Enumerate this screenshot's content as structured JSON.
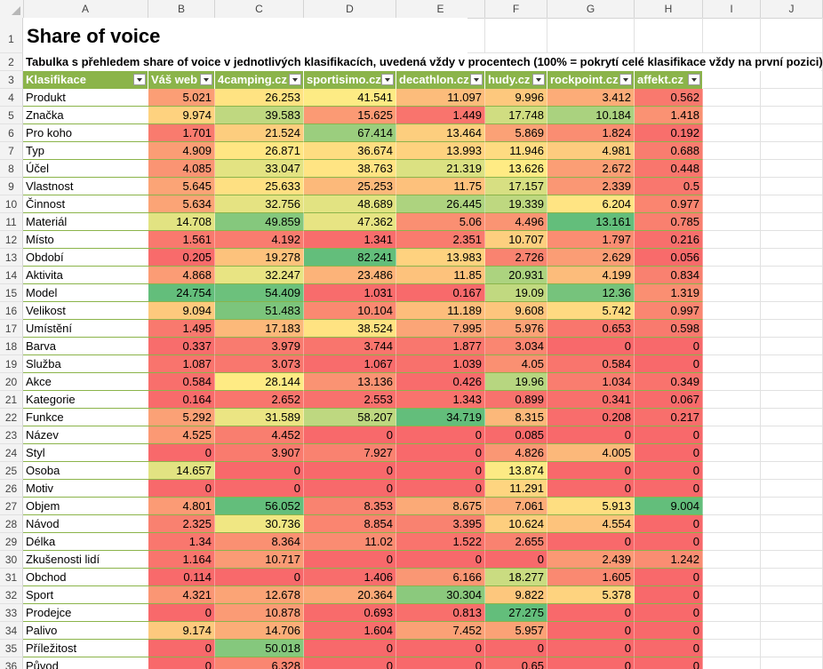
{
  "column_letters": [
    "A",
    "B",
    "C",
    "D",
    "E",
    "F",
    "G",
    "H",
    "I",
    "J"
  ],
  "title": "Share of voice",
  "subtitle": "Tabulka s přehledem share of voice v jednotlivých klasifikacích, uvedená vždy v procentech (100% = pokrytí celé klasifikace vždy na první pozici).",
  "headers": [
    "Klasifikace",
    "Váš web",
    "4camping.cz",
    "sportisimo.cz",
    "decathlon.cz",
    "hudy.cz",
    "rockpoint.cz",
    "affekt.cz"
  ],
  "rows": [
    {
      "n": "4",
      "label": "Produkt",
      "values": [
        "5.021",
        "26.253",
        "41.541",
        "11.097",
        "9.996",
        "3.412",
        "0.562"
      ]
    },
    {
      "n": "5",
      "label": "Značka",
      "values": [
        "9.974",
        "39.583",
        "15.625",
        "1.449",
        "17.748",
        "10.184",
        "1.418"
      ]
    },
    {
      "n": "6",
      "label": "Pro koho",
      "values": [
        "1.701",
        "21.524",
        "67.414",
        "13.464",
        "5.869",
        "1.824",
        "0.192"
      ]
    },
    {
      "n": "7",
      "label": "Typ",
      "values": [
        "4.909",
        "26.871",
        "36.674",
        "13.993",
        "11.946",
        "4.981",
        "0.688"
      ]
    },
    {
      "n": "8",
      "label": "Účel",
      "values": [
        "4.085",
        "33.047",
        "38.763",
        "21.319",
        "13.626",
        "2.672",
        "0.448"
      ]
    },
    {
      "n": "9",
      "label": "Vlastnost",
      "values": [
        "5.645",
        "25.633",
        "25.253",
        "11.75",
        "17.157",
        "2.339",
        "0.5"
      ]
    },
    {
      "n": "10",
      "label": "Činnost",
      "values": [
        "5.634",
        "32.756",
        "48.689",
        "26.445",
        "19.339",
        "6.204",
        "0.977"
      ]
    },
    {
      "n": "11",
      "label": "Materiál",
      "values": [
        "14.708",
        "49.859",
        "47.362",
        "5.06",
        "4.496",
        "13.161",
        "0.785"
      ]
    },
    {
      "n": "12",
      "label": "Místo",
      "values": [
        "1.561",
        "4.192",
        "1.341",
        "2.351",
        "10.707",
        "1.797",
        "0.216"
      ]
    },
    {
      "n": "13",
      "label": "Období",
      "values": [
        "0.205",
        "19.278",
        "82.241",
        "13.983",
        "2.726",
        "2.629",
        "0.056"
      ]
    },
    {
      "n": "14",
      "label": "Aktivita",
      "values": [
        "4.868",
        "32.247",
        "23.486",
        "11.85",
        "20.931",
        "4.199",
        "0.834"
      ]
    },
    {
      "n": "15",
      "label": "Model",
      "values": [
        "24.754",
        "54.409",
        "1.031",
        "0.167",
        "19.09",
        "12.36",
        "1.319"
      ]
    },
    {
      "n": "16",
      "label": "Velikost",
      "values": [
        "9.094",
        "51.483",
        "10.104",
        "11.189",
        "9.608",
        "5.742",
        "0.997"
      ]
    },
    {
      "n": "17",
      "label": "Umístění",
      "values": [
        "1.495",
        "17.183",
        "38.524",
        "7.995",
        "5.976",
        "0.653",
        "0.598"
      ]
    },
    {
      "n": "18",
      "label": "Barva",
      "values": [
        "0.337",
        "3.979",
        "3.744",
        "1.877",
        "3.034",
        "0",
        "0"
      ]
    },
    {
      "n": "19",
      "label": "Služba",
      "values": [
        "1.087",
        "3.073",
        "1.067",
        "1.039",
        "4.05",
        "0.584",
        "0"
      ]
    },
    {
      "n": "20",
      "label": "Akce",
      "values": [
        "0.584",
        "28.144",
        "13.136",
        "0.426",
        "19.96",
        "1.034",
        "0.349"
      ]
    },
    {
      "n": "21",
      "label": "Kategorie",
      "values": [
        "0.164",
        "2.652",
        "2.553",
        "1.343",
        "0.899",
        "0.341",
        "0.067"
      ]
    },
    {
      "n": "22",
      "label": "Funkce",
      "values": [
        "5.292",
        "31.589",
        "58.207",
        "34.719",
        "8.315",
        "0.208",
        "0.217"
      ]
    },
    {
      "n": "23",
      "label": "Název",
      "values": [
        "4.525",
        "4.452",
        "0",
        "0",
        "0.085",
        "0",
        "0"
      ]
    },
    {
      "n": "24",
      "label": "Styl",
      "values": [
        "0",
        "3.907",
        "7.927",
        "0",
        "4.826",
        "4.005",
        "0"
      ]
    },
    {
      "n": "25",
      "label": "Osoba",
      "values": [
        "14.657",
        "0",
        "0",
        "0",
        "13.874",
        "0",
        "0"
      ]
    },
    {
      "n": "26",
      "label": "Motiv",
      "values": [
        "0",
        "0",
        "0",
        "0",
        "11.291",
        "0",
        "0"
      ]
    },
    {
      "n": "27",
      "label": "Objem",
      "values": [
        "4.801",
        "56.052",
        "8.353",
        "8.675",
        "7.061",
        "5.913",
        "9.004"
      ]
    },
    {
      "n": "28",
      "label": "Návod",
      "values": [
        "2.325",
        "30.736",
        "8.854",
        "3.395",
        "10.624",
        "4.554",
        "0"
      ]
    },
    {
      "n": "29",
      "label": "Délka",
      "values": [
        "1.34",
        "8.364",
        "11.02",
        "1.522",
        "2.655",
        "0",
        "0"
      ]
    },
    {
      "n": "30",
      "label": "Zkušenosti lidí",
      "values": [
        "1.164",
        "10.717",
        "0",
        "0",
        "0",
        "2.439",
        "1.242"
      ]
    },
    {
      "n": "31",
      "label": "Obchod",
      "values": [
        "0.114",
        "0",
        "1.406",
        "6.166",
        "18.277",
        "1.605",
        "0"
      ]
    },
    {
      "n": "32",
      "label": "Sport",
      "values": [
        "4.321",
        "12.678",
        "20.364",
        "30.304",
        "9.822",
        "5.378",
        "0"
      ]
    },
    {
      "n": "33",
      "label": "Prodejce",
      "values": [
        "0",
        "10.878",
        "0.693",
        "0.813",
        "27.275",
        "0",
        "0"
      ]
    },
    {
      "n": "34",
      "label": "Palivo",
      "values": [
        "9.174",
        "14.706",
        "1.604",
        "7.452",
        "5.957",
        "0",
        "0"
      ]
    },
    {
      "n": "35",
      "label": "Příležitost",
      "values": [
        "0",
        "50.018",
        "0",
        "0",
        "0",
        "0",
        "0"
      ]
    },
    {
      "n": "36",
      "label": "Původ",
      "values": [
        "0",
        "6.328",
        "0",
        "0",
        "0.65",
        "0",
        "0"
      ]
    }
  ]
}
